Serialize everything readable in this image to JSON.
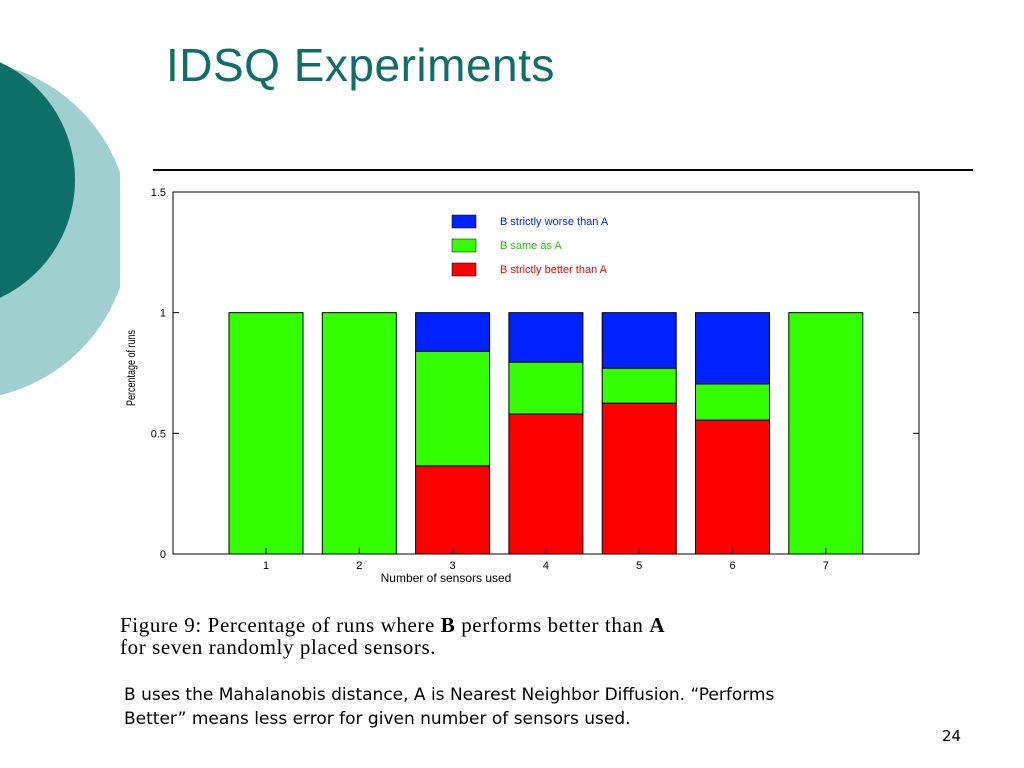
{
  "slide": {
    "title": "IDSQ Experiments",
    "page_number": "24",
    "caption": {
      "line1_pre": "Figure 9:  Percentage of runs where ",
      "line1_b": "B",
      "line1_mid": " performs better than ",
      "line1_a": "A",
      "line2": "for seven randomly placed sensors."
    },
    "body_line1": "B uses the Mahalanobis distance, A is Nearest Neighbor Diffusion. “Performs",
    "body_line2": "Better” means less error for given number of sensors used.",
    "colors": {
      "title": "#0e6e68",
      "deco_dark": "#0e6e68",
      "deco_light": "#9fcfcf"
    }
  },
  "chart_data": {
    "type": "bar",
    "stacked": true,
    "title": "",
    "xlabel": "Number of sensors used",
    "ylabel": "Percentage of runs",
    "ylim": [
      0,
      1.5
    ],
    "yticks": [
      "0",
      "0.5",
      "1",
      "1.5"
    ],
    "ytick_values": [
      0,
      0.5,
      1,
      1.5
    ],
    "categories": [
      "1",
      "2",
      "3",
      "4",
      "5",
      "6",
      "7"
    ],
    "series": [
      {
        "name": "B strictly better than A",
        "color": "#ff0000",
        "values": [
          0,
          0,
          0.365,
          0.58,
          0.625,
          0.555,
          0
        ]
      },
      {
        "name": "B same as A",
        "color": "#33ff00",
        "values": [
          1.0,
          1.0,
          0.475,
          0.215,
          0.145,
          0.15,
          1.0
        ]
      },
      {
        "name": "B strictly worse than A",
        "color": "#0022ff",
        "values": [
          0,
          0,
          0.16,
          0.205,
          0.23,
          0.295,
          0
        ]
      }
    ],
    "legend_order": [
      "B strictly worse than A",
      "B same as A",
      "B strictly better than A"
    ],
    "legend_position": "top-right"
  }
}
